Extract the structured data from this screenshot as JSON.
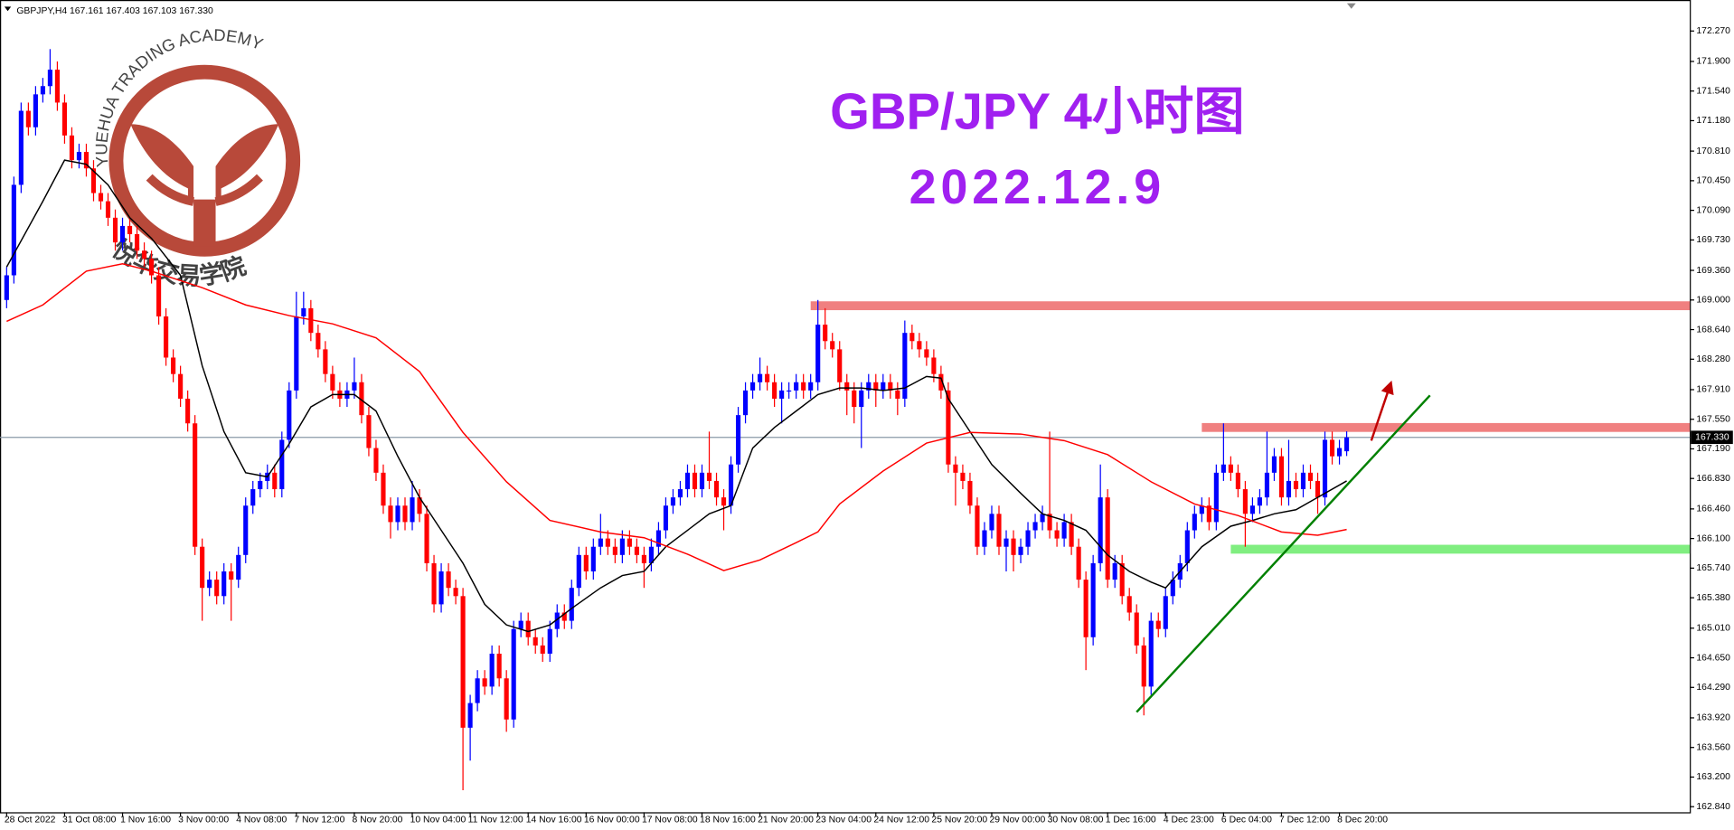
{
  "chart_data": {
    "type": "candlestick",
    "header": "GBPJPY,H4  167.161 167.403 167.103 167.330",
    "title": "GBP/JPY 4小时图",
    "subtitle": "2022.12.9",
    "watermark_top": "YUEHUA TRADING ACADEMY",
    "watermark_bottom": "悦华交易学院",
    "up_color": "#0000ff",
    "down_color": "#ff0000",
    "ylim": [
      162.772,
      172.647
    ],
    "yticks": [
      {
        "value": 172.27,
        "label": "172.270"
      },
      {
        "value": 171.9,
        "label": "171.900"
      },
      {
        "value": 171.54,
        "label": "171.540"
      },
      {
        "value": 171.18,
        "label": "171.180"
      },
      {
        "value": 170.81,
        "label": "170.810"
      },
      {
        "value": 170.45,
        "label": "170.450"
      },
      {
        "value": 170.09,
        "label": "170.090"
      },
      {
        "value": 169.73,
        "label": "169.730"
      },
      {
        "value": 169.36,
        "label": "169.360"
      },
      {
        "value": 169.0,
        "label": "169.000"
      },
      {
        "value": 168.64,
        "label": "168.640"
      },
      {
        "value": 168.28,
        "label": "168.280"
      },
      {
        "value": 167.91,
        "label": "167.910"
      },
      {
        "value": 167.55,
        "label": "167.550"
      },
      {
        "value": 167.19,
        "label": "167.190"
      },
      {
        "value": 166.83,
        "label": "166.830"
      },
      {
        "value": 166.46,
        "label": "166.460"
      },
      {
        "value": 166.1,
        "label": "166.100"
      },
      {
        "value": 165.74,
        "label": "165.740"
      },
      {
        "value": 165.38,
        "label": "165.380"
      },
      {
        "value": 165.01,
        "label": "165.010"
      },
      {
        "value": 164.65,
        "label": "164.650"
      },
      {
        "value": 164.29,
        "label": "164.290"
      },
      {
        "value": 163.92,
        "label": "163.920"
      },
      {
        "value": 163.56,
        "label": "163.560"
      },
      {
        "value": 163.2,
        "label": "163.200"
      },
      {
        "value": 162.84,
        "label": "162.840"
      }
    ],
    "last_price": {
      "value": 167.33,
      "label": "167.330",
      "color": "#8a9aa8"
    },
    "categories": [
      "28 Oct 2022",
      null,
      null,
      null,
      null,
      null,
      null,
      null,
      "31 Oct 08:00",
      null,
      null,
      null,
      null,
      null,
      null,
      null,
      "1 Nov 16:00",
      null,
      null,
      null,
      null,
      null,
      null,
      null,
      "3 Nov 00:00",
      null,
      null,
      null,
      null,
      null,
      null,
      null,
      "4 Nov 08:00",
      null,
      null,
      null,
      null,
      null,
      null,
      null,
      "7 Nov 12:00",
      null,
      null,
      null,
      null,
      null,
      null,
      null,
      "8 Nov 20:00",
      null,
      null,
      null,
      null,
      null,
      null,
      null,
      "10 Nov 04:00",
      null,
      null,
      null,
      null,
      null,
      null,
      null,
      "11 Nov 12:00",
      null,
      null,
      null,
      null,
      null,
      null,
      null,
      "14 Nov 16:00",
      null,
      null,
      null,
      null,
      null,
      null,
      null,
      "16 Nov 00:00",
      null,
      null,
      null,
      null,
      null,
      null,
      null,
      "17 Nov 08:00",
      null,
      null,
      null,
      null,
      null,
      null,
      null,
      "18 Nov 16:00",
      null,
      null,
      null,
      null,
      null,
      null,
      null,
      "21 Nov 20:00",
      null,
      null,
      null,
      null,
      null,
      null,
      null,
      "23 Nov 04:00",
      null,
      null,
      null,
      null,
      null,
      null,
      null,
      "24 Nov 12:00",
      null,
      null,
      null,
      null,
      null,
      null,
      null,
      "25 Nov 20:00",
      null,
      null,
      null,
      null,
      null,
      null,
      null,
      "29 Nov 00:00",
      null,
      null,
      null,
      null,
      null,
      null,
      null,
      "30 Nov 08:00",
      null,
      null,
      null,
      null,
      null,
      null,
      null,
      "1 Dec 16:00",
      null,
      null,
      null,
      null,
      null,
      null,
      null,
      "4 Dec 23:00",
      null,
      null,
      null,
      null,
      null,
      null,
      null,
      "6 Dec 04:00",
      null,
      null,
      null,
      null,
      null,
      null,
      null,
      "7 Dec 12:00",
      null,
      null,
      null,
      null,
      null,
      null,
      null,
      "8 Dec 20:00",
      null
    ],
    "open": [
      169.0,
      169.3,
      170.4,
      171.3,
      171.1,
      171.5,
      171.6,
      171.8,
      171.4,
      171.0,
      170.7,
      170.8,
      170.6,
      170.3,
      170.2,
      170.0,
      169.7,
      169.9,
      169.8,
      169.6,
      169.5,
      169.3,
      168.8,
      168.3,
      168.1,
      167.8,
      167.5,
      166.0,
      165.5,
      165.6,
      165.4,
      165.7,
      165.6,
      165.9,
      166.5,
      166.7,
      166.8,
      166.9,
      166.7,
      167.3,
      167.9,
      168.8,
      168.9,
      168.6,
      168.4,
      168.1,
      167.9,
      167.8,
      167.9,
      168.0,
      167.6,
      167.2,
      166.9,
      166.5,
      166.3,
      166.5,
      166.3,
      166.6,
      166.4,
      165.8,
      165.3,
      165.7,
      165.5,
      165.4,
      163.8,
      164.1,
      164.4,
      164.3,
      164.7,
      164.4,
      163.9,
      165.0,
      165.1,
      164.9,
      164.8,
      164.7,
      165.0,
      165.2,
      165.1,
      165.5,
      165.9,
      165.7,
      166.0,
      166.1,
      166.0,
      165.9,
      166.1,
      166.0,
      165.9,
      165.8,
      166.0,
      166.2,
      166.5,
      166.6,
      166.7,
      166.9,
      166.7,
      166.9,
      166.8,
      166.6,
      166.5,
      167.0,
      167.6,
      167.9,
      168.0,
      168.1,
      168.0,
      167.8,
      167.9,
      167.9,
      168.0,
      167.9,
      168.0,
      168.7,
      168.5,
      168.4,
      168.0,
      167.9,
      167.7,
      167.9,
      168.0,
      167.9,
      168.0,
      167.9,
      167.8,
      168.6,
      168.5,
      168.4,
      168.3,
      168.1,
      167.9,
      167.0,
      166.9,
      166.8,
      166.5,
      166.0,
      166.2,
      166.4,
      166.0,
      166.1,
      165.9,
      166.0,
      166.2,
      166.3,
      166.4,
      166.2,
      166.1,
      166.3,
      166.0,
      165.6,
      164.9,
      165.8,
      166.6,
      165.6,
      165.8,
      165.4,
      165.2,
      164.8,
      164.3,
      165.1,
      165.0,
      165.4,
      165.6,
      165.8,
      166.2,
      166.4,
      166.5,
      166.3,
      166.9,
      167.0,
      166.9,
      166.7,
      166.4,
      166.5,
      166.6,
      166.9,
      167.1,
      166.6,
      166.8,
      166.7,
      166.9,
      166.8,
      166.6,
      167.3,
      167.1,
      167.161
    ],
    "high": [
      169.4,
      170.5,
      171.4,
      171.4,
      171.6,
      171.7,
      172.05,
      171.9,
      171.5,
      171.1,
      170.9,
      170.9,
      170.7,
      170.4,
      170.3,
      170.1,
      170.0,
      170.0,
      169.9,
      169.7,
      169.6,
      169.4,
      168.9,
      168.4,
      168.2,
      167.9,
      167.6,
      166.1,
      165.7,
      165.7,
      165.8,
      165.8,
      166.0,
      166.6,
      166.8,
      166.9,
      167.0,
      167.0,
      167.4,
      168.0,
      169.1,
      169.1,
      169.0,
      168.7,
      168.5,
      168.2,
      168.0,
      168.0,
      168.3,
      168.1,
      167.7,
      167.3,
      167.0,
      166.6,
      166.6,
      166.6,
      166.8,
      166.7,
      166.5,
      165.9,
      165.8,
      165.8,
      165.6,
      165.5,
      164.2,
      164.5,
      164.5,
      164.8,
      164.8,
      164.5,
      165.1,
      165.2,
      165.2,
      165.0,
      164.9,
      165.1,
      165.3,
      165.3,
      165.6,
      166.0,
      166.0,
      166.1,
      166.4,
      166.2,
      166.1,
      166.2,
      166.2,
      166.1,
      166.0,
      166.1,
      166.3,
      166.6,
      166.7,
      166.8,
      167.0,
      167.0,
      167.0,
      167.4,
      166.9,
      166.7,
      167.1,
      167.7,
      168.0,
      168.1,
      168.3,
      168.2,
      168.1,
      168.0,
      168.0,
      168.1,
      168.1,
      168.1,
      169.0,
      168.9,
      168.6,
      168.5,
      168.1,
      168.0,
      168.0,
      168.1,
      168.1,
      168.1,
      168.1,
      168.0,
      168.75,
      168.7,
      168.6,
      168.5,
      168.4,
      168.2,
      168.0,
      167.1,
      167.0,
      166.9,
      166.6,
      166.3,
      166.5,
      166.5,
      166.2,
      166.2,
      166.1,
      166.3,
      166.4,
      166.5,
      167.4,
      166.3,
      166.4,
      166.4,
      166.1,
      165.7,
      165.9,
      167.0,
      166.7,
      165.9,
      165.9,
      165.5,
      165.3,
      164.9,
      165.2,
      165.2,
      165.5,
      165.7,
      165.9,
      166.3,
      166.5,
      166.6,
      166.6,
      167.0,
      167.5,
      167.1,
      167.0,
      166.8,
      166.6,
      166.7,
      167.4,
      167.2,
      167.2,
      167.3,
      166.9,
      167.0,
      167.0,
      166.9,
      167.4,
      167.4,
      167.3,
      167.403
    ],
    "low": [
      168.9,
      169.2,
      170.3,
      171.0,
      171.0,
      171.4,
      171.5,
      171.3,
      170.9,
      170.6,
      170.6,
      170.5,
      170.2,
      170.1,
      169.9,
      169.6,
      169.6,
      169.7,
      169.5,
      169.4,
      169.2,
      168.7,
      168.2,
      168.0,
      167.7,
      167.4,
      165.9,
      165.1,
      165.4,
      165.3,
      165.3,
      165.1,
      165.5,
      165.8,
      166.4,
      166.6,
      166.7,
      166.6,
      166.6,
      167.2,
      167.8,
      168.7,
      168.5,
      168.3,
      168.0,
      167.8,
      167.7,
      167.7,
      167.8,
      167.5,
      167.1,
      166.8,
      166.4,
      166.1,
      166.2,
      166.2,
      166.2,
      166.3,
      165.7,
      165.2,
      165.2,
      165.4,
      165.3,
      163.04,
      163.4,
      164.0,
      164.2,
      164.2,
      164.3,
      163.75,
      163.8,
      164.9,
      164.8,
      164.7,
      164.6,
      164.6,
      164.9,
      165.0,
      165.0,
      165.4,
      165.6,
      165.6,
      165.9,
      165.9,
      165.8,
      165.8,
      165.9,
      165.8,
      165.5,
      165.7,
      165.9,
      166.1,
      166.4,
      166.5,
      166.6,
      166.6,
      166.6,
      166.7,
      166.5,
      166.2,
      166.4,
      166.9,
      167.5,
      167.8,
      167.9,
      167.9,
      167.7,
      167.5,
      167.8,
      167.8,
      167.8,
      167.8,
      167.9,
      168.4,
      168.3,
      167.9,
      167.6,
      167.5,
      167.2,
      167.8,
      167.7,
      167.8,
      167.8,
      167.6,
      167.7,
      168.4,
      168.3,
      168.2,
      168.0,
      167.8,
      166.9,
      166.5,
      166.7,
      166.4,
      165.9,
      165.9,
      166.1,
      165.9,
      165.7,
      165.7,
      165.8,
      165.9,
      166.1,
      166.2,
      166.1,
      166.0,
      166.0,
      165.9,
      165.5,
      164.5,
      164.8,
      165.7,
      165.5,
      165.5,
      165.3,
      165.1,
      164.7,
      163.95,
      164.2,
      164.9,
      164.9,
      165.3,
      165.5,
      165.7,
      166.1,
      166.3,
      166.2,
      166.2,
      166.8,
      166.8,
      166.6,
      166.0,
      166.3,
      166.4,
      166.5,
      166.8,
      166.5,
      166.5,
      166.6,
      166.6,
      166.7,
      166.4,
      166.5,
      167.0,
      167.0,
      167.103
    ],
    "close": [
      169.3,
      170.4,
      171.3,
      171.1,
      171.5,
      171.6,
      171.8,
      171.4,
      171.0,
      170.7,
      170.8,
      170.6,
      170.3,
      170.2,
      170.0,
      169.7,
      169.9,
      169.8,
      169.6,
      169.5,
      169.3,
      168.8,
      168.3,
      168.1,
      167.8,
      167.5,
      166.0,
      165.5,
      165.6,
      165.4,
      165.7,
      165.6,
      165.9,
      166.5,
      166.7,
      166.8,
      166.9,
      166.7,
      167.3,
      167.9,
      168.8,
      168.9,
      168.6,
      168.4,
      168.1,
      167.9,
      167.8,
      167.9,
      168.0,
      167.6,
      167.2,
      166.9,
      166.5,
      166.3,
      166.5,
      166.3,
      166.6,
      166.4,
      165.8,
      165.3,
      165.7,
      165.5,
      165.4,
      163.8,
      164.1,
      164.4,
      164.3,
      164.7,
      164.4,
      163.9,
      165.0,
      165.1,
      164.9,
      164.8,
      164.7,
      165.0,
      165.2,
      165.1,
      165.5,
      165.9,
      165.7,
      166.0,
      166.1,
      166.0,
      165.9,
      166.1,
      166.0,
      165.9,
      165.8,
      166.0,
      166.2,
      166.5,
      166.6,
      166.7,
      166.9,
      166.7,
      166.9,
      166.8,
      166.6,
      166.5,
      167.0,
      167.6,
      167.9,
      168.0,
      168.1,
      168.0,
      167.8,
      167.9,
      167.9,
      168.0,
      167.9,
      168.0,
      168.7,
      168.5,
      168.4,
      168.0,
      167.9,
      167.7,
      167.9,
      168.0,
      167.9,
      168.0,
      167.9,
      167.8,
      168.6,
      168.5,
      168.4,
      168.3,
      168.1,
      167.9,
      167.0,
      166.9,
      166.8,
      166.5,
      166.0,
      166.2,
      166.4,
      166.0,
      166.1,
      165.9,
      166.0,
      166.2,
      166.3,
      166.4,
      166.2,
      166.1,
      166.3,
      166.0,
      165.6,
      164.9,
      165.8,
      166.6,
      165.6,
      165.8,
      165.4,
      165.2,
      164.8,
      164.3,
      165.1,
      165.0,
      165.4,
      165.6,
      165.8,
      166.2,
      166.4,
      166.5,
      166.3,
      166.9,
      167.0,
      166.9,
      166.7,
      166.4,
      166.5,
      166.6,
      166.9,
      167.1,
      166.6,
      166.8,
      166.7,
      166.9,
      166.8,
      166.6,
      167.3,
      167.1,
      167.2,
      167.33
    ],
    "moving_averages": [
      {
        "color": "#000000",
        "x": [
          0,
          5,
          8,
          11,
          14,
          17,
          20,
          24,
          27,
          30,
          33,
          36,
          39,
          42,
          45,
          48,
          51,
          54,
          57,
          60,
          63,
          66,
          69,
          72,
          75,
          78,
          82,
          85,
          88,
          91,
          94,
          97,
          100,
          103,
          106,
          109,
          112,
          115,
          118,
          121,
          124,
          127,
          129,
          130,
          133,
          136,
          140,
          143,
          146,
          149,
          152,
          155,
          158,
          160,
          162,
          165,
          169,
          172,
          175,
          178,
          181,
          185
        ],
        "values": [
          169.4,
          170.2,
          170.7,
          170.65,
          170.4,
          170.0,
          169.75,
          169.3,
          168.2,
          167.4,
          166.9,
          166.85,
          167.25,
          167.7,
          167.85,
          167.85,
          167.65,
          167.1,
          166.6,
          166.2,
          165.8,
          165.3,
          165.05,
          164.97,
          165.05,
          165.25,
          165.5,
          165.65,
          165.7,
          166.0,
          166.2,
          166.4,
          166.5,
          167.2,
          167.45,
          167.65,
          167.85,
          167.93,
          167.93,
          167.9,
          167.93,
          168.07,
          168.05,
          167.8,
          167.4,
          167.0,
          166.65,
          166.4,
          166.32,
          166.2,
          165.9,
          165.7,
          165.57,
          165.5,
          165.7,
          166.0,
          166.25,
          166.32,
          166.4,
          166.45,
          166.6,
          166.8
        ]
      },
      {
        "color": "#ff0000",
        "x": [
          0,
          5,
          11,
          16,
          20,
          27,
          33,
          39,
          45,
          51,
          57,
          63,
          69,
          75,
          82,
          88,
          94,
          99,
          104,
          109,
          112,
          115,
          121,
          127,
          133,
          140,
          146,
          152,
          158,
          164,
          170,
          176,
          181,
          185
        ],
        "values": [
          168.74,
          168.94,
          169.35,
          169.44,
          169.35,
          169.15,
          168.94,
          168.81,
          168.71,
          168.54,
          168.13,
          167.39,
          166.79,
          166.32,
          166.18,
          166.11,
          165.91,
          165.71,
          165.84,
          166.05,
          166.18,
          166.52,
          166.92,
          167.26,
          167.39,
          167.37,
          167.29,
          167.12,
          166.79,
          166.52,
          166.38,
          166.18,
          166.14,
          166.21
        ]
      }
    ],
    "zones": [
      {
        "price": 168.93,
        "start": 111,
        "color": "#f08080"
      },
      {
        "price": 167.45,
        "start": 165,
        "color": "#f08080"
      },
      {
        "price": 165.97,
        "start": 169,
        "color": "#80ee80"
      }
    ],
    "trendline": {
      "start": 156,
      "start_price": 163.99,
      "end": 196.5,
      "end_price": 167.84,
      "color": "#008000"
    },
    "arrow": {
      "start": 188.4,
      "start_price": 167.29,
      "end": 191.1,
      "end_price": 167.99,
      "color": "#c00000"
    }
  }
}
